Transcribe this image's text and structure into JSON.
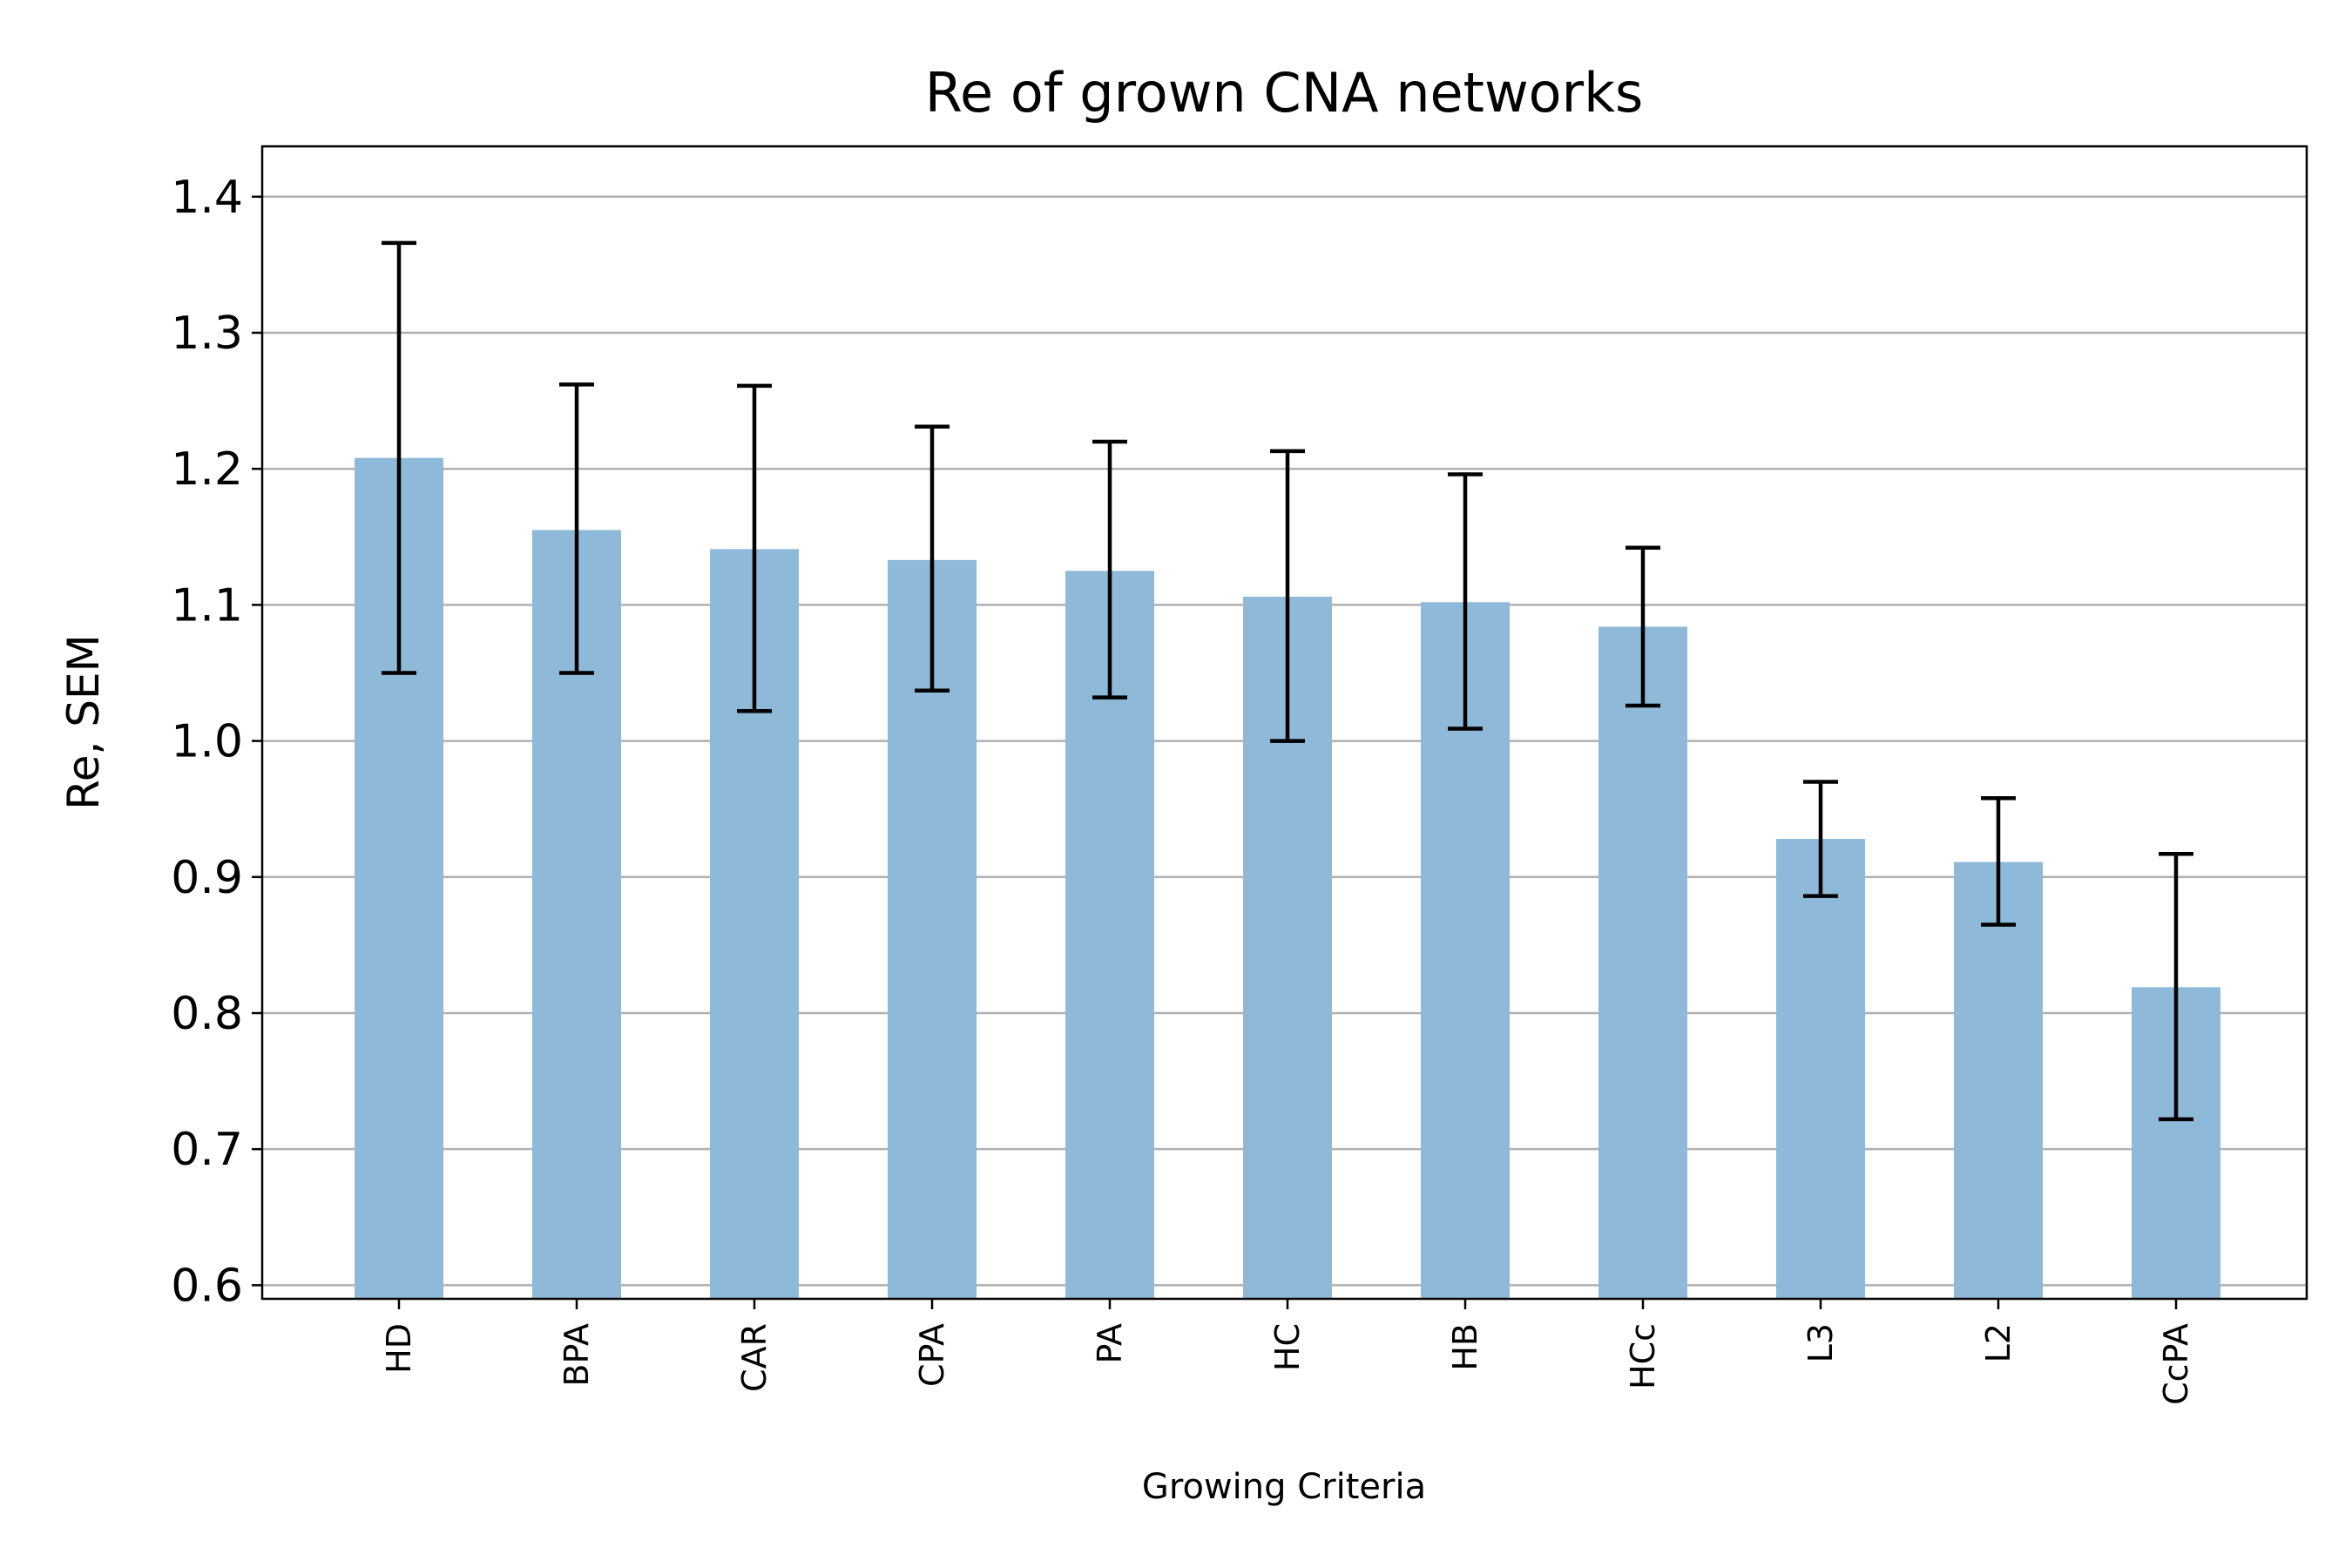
{
  "chart_data": {
    "type": "bar",
    "title": "Re of grown CNA networks",
    "xlabel": "Growing Criteria",
    "ylabel": "Re, SEM",
    "ylim": [
      0.59,
      1.437
    ],
    "yticks": [
      0.6,
      0.7,
      0.8,
      0.9,
      1.0,
      1.1,
      1.2,
      1.3,
      1.4
    ],
    "ytick_labels": [
      "0.6",
      "0.7",
      "0.8",
      "0.9",
      "1.0",
      "1.1",
      "1.2",
      "1.3",
      "1.4"
    ],
    "grid": "y",
    "categories": [
      "HD",
      "BPA",
      "CAR",
      "CPA",
      "PA",
      "HC",
      "HB",
      "HCc",
      "L3",
      "L2",
      "CcPA"
    ],
    "values": [
      1.208,
      1.155,
      1.141,
      1.133,
      1.125,
      1.106,
      1.102,
      1.084,
      0.928,
      0.911,
      0.819
    ],
    "error_low": [
      1.05,
      1.05,
      1.022,
      1.037,
      1.032,
      1.0,
      1.009,
      1.026,
      0.886,
      0.865,
      0.722
    ],
    "error_high": [
      1.366,
      1.262,
      1.261,
      1.231,
      1.22,
      1.213,
      1.196,
      1.142,
      0.97,
      0.958,
      0.917
    ],
    "bar_color": "#8fb9d9",
    "grid_color": "#b0b0b0"
  }
}
